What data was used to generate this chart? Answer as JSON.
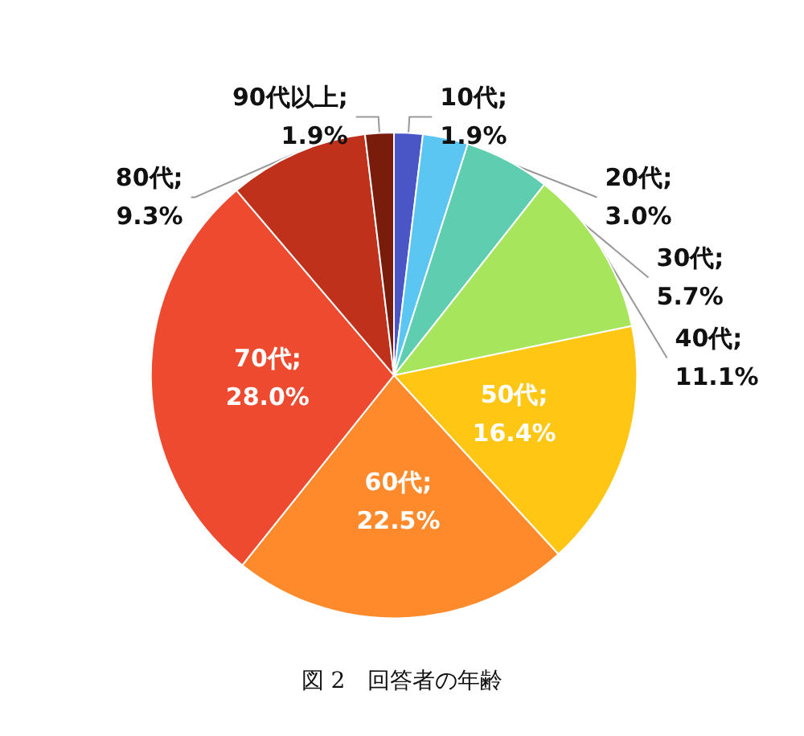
{
  "chart_data": {
    "type": "pie",
    "title": "図 2　回答者の年齢",
    "categories": [
      "10代",
      "20代",
      "30代",
      "40代",
      "50代",
      "60代",
      "70代",
      "80代",
      "90代以上"
    ],
    "values": [
      1.9,
      3.0,
      5.7,
      11.1,
      16.4,
      22.5,
      28.0,
      9.3,
      1.9
    ],
    "colors": [
      "#4a56c6",
      "#5cc6f2",
      "#5ecdb0",
      "#a6e55c",
      "#ffc714",
      "#ff8a2c",
      "#ee4a30",
      "#c0311c",
      "#7a1c0c"
    ],
    "value_labels": [
      ";\n1.9%",
      ";\n3.0%",
      ";\n5.7%",
      ";\n11.1%",
      ";\n16.4%",
      ";\n22.5%",
      ";\n28.0%",
      ";\n9.3%",
      ";\n1.9%"
    ]
  }
}
